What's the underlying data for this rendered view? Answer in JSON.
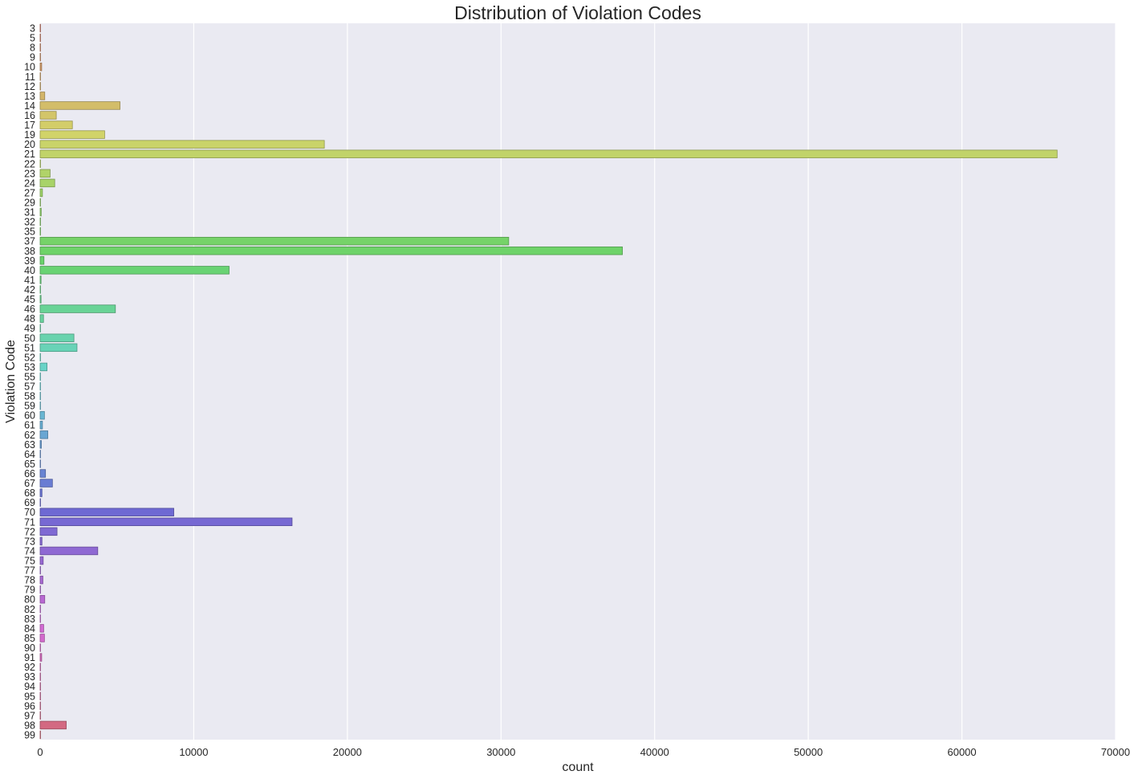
{
  "chart_data": {
    "type": "bar",
    "orientation": "horizontal",
    "title": "Distribution of Violation Codes",
    "xlabel": "count",
    "ylabel": "Violation Code",
    "xlim": [
      0,
      70000
    ],
    "xticks": [
      0,
      10000,
      20000,
      30000,
      40000,
      50000,
      60000,
      70000
    ],
    "grid": true,
    "legend": "none",
    "colors": {
      "background": "#eaeaf2",
      "grid": "#ffffff"
    },
    "categories": [
      "3",
      "5",
      "8",
      "9",
      "10",
      "11",
      "12",
      "13",
      "14",
      "16",
      "17",
      "19",
      "20",
      "21",
      "22",
      "23",
      "24",
      "27",
      "29",
      "31",
      "32",
      "35",
      "37",
      "38",
      "39",
      "40",
      "41",
      "42",
      "45",
      "46",
      "48",
      "49",
      "50",
      "51",
      "52",
      "53",
      "55",
      "57",
      "58",
      "59",
      "60",
      "61",
      "62",
      "63",
      "64",
      "65",
      "66",
      "67",
      "68",
      "69",
      "70",
      "71",
      "72",
      "73",
      "74",
      "75",
      "77",
      "78",
      "79",
      "80",
      "82",
      "83",
      "84",
      "85",
      "90",
      "91",
      "92",
      "93",
      "94",
      "95",
      "96",
      "97",
      "98",
      "99"
    ],
    "values": [
      10,
      5,
      5,
      10,
      100,
      10,
      10,
      300,
      5200,
      1050,
      2100,
      4200,
      18500,
      66200,
      10,
      650,
      950,
      150,
      10,
      70,
      10,
      10,
      30500,
      37900,
      250,
      12300,
      60,
      10,
      60,
      4900,
      220,
      10,
      2200,
      2400,
      10,
      450,
      10,
      10,
      10,
      10,
      280,
      150,
      500,
      80,
      10,
      10,
      350,
      800,
      120,
      10,
      8700,
      16400,
      1100,
      120,
      3750,
      200,
      10,
      180,
      20,
      300,
      10,
      10,
      230,
      280,
      10,
      100,
      20,
      20,
      10,
      10,
      10,
      10,
      1700,
      10
    ]
  }
}
